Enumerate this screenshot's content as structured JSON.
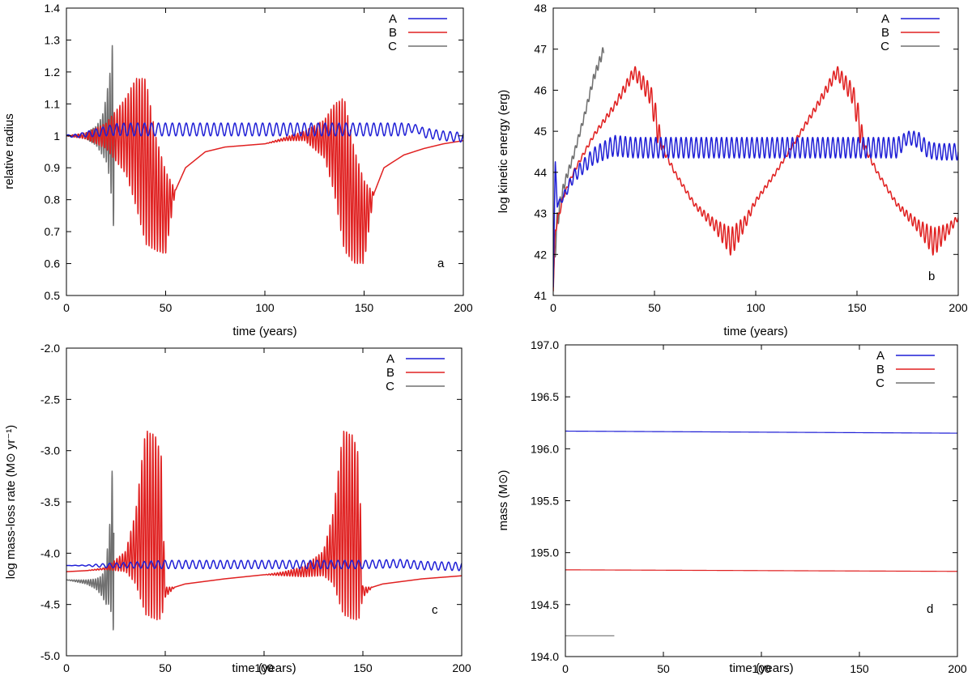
{
  "chart_data": [
    {
      "id": "a",
      "type": "line",
      "panel_label": "a",
      "xlabel": "time (years)",
      "ylabel": "relative radius",
      "xlim": [
        0,
        200
      ],
      "ylim": [
        0.5,
        1.4
      ],
      "xticks": [
        0,
        50,
        100,
        150,
        200
      ],
      "yticks": [
        0.5,
        0.6,
        0.7,
        0.8,
        0.9,
        1.0,
        1.1,
        1.2,
        1.3,
        1.4
      ],
      "ytick_labels": [
        "0.5",
        "0.6",
        "0.7",
        "0.8",
        "0.9",
        "1",
        "1.1",
        "1.2",
        "1.3",
        "1.4"
      ],
      "legend": [
        "A",
        "B",
        "C"
      ],
      "series": [
        {
          "name": "A",
          "color": "#1f1fd6",
          "x": [
            0,
            5,
            10,
            15,
            20,
            25,
            30,
            50,
            100,
            150,
            170,
            176,
            180,
            190,
            200
          ],
          "y": [
            1.0,
            1.0,
            1.005,
            1.01,
            1.015,
            1.02,
            1.02,
            1.02,
            1.02,
            1.02,
            1.02,
            1.025,
            1.01,
            1.0,
            0.995
          ],
          "osc_amp": [
            0.003,
            0.005,
            0.008,
            0.012,
            0.015,
            0.018,
            0.02,
            0.02,
            0.02,
            0.02,
            0.02,
            0.01,
            0.015,
            0.015,
            0.015
          ],
          "osc_period": 3.5
        },
        {
          "name": "B",
          "color": "#e02020",
          "x": [
            0,
            10,
            20,
            30,
            35,
            40,
            45,
            50,
            55,
            60,
            70,
            80,
            100,
            110,
            120,
            130,
            135,
            140,
            145,
            150,
            155,
            160,
            170,
            180,
            190,
            200
          ],
          "y": [
            1.0,
            1.0,
            1.0,
            1.0,
            0.98,
            0.92,
            0.82,
            0.76,
            0.83,
            0.9,
            0.95,
            0.965,
            0.975,
            0.99,
            1.0,
            0.99,
            0.96,
            0.88,
            0.78,
            0.73,
            0.82,
            0.9,
            0.94,
            0.96,
            0.975,
            0.985
          ],
          "osc_amp": [
            0.0,
            0.01,
            0.04,
            0.12,
            0.2,
            0.26,
            0.18,
            0.13,
            0.0,
            0.0,
            0.0,
            0.0,
            0.0,
            0.005,
            0.015,
            0.06,
            0.14,
            0.24,
            0.18,
            0.13,
            0.0,
            0.0,
            0.0,
            0.0,
            0.0,
            0.0
          ],
          "osc_period": 1.4
        },
        {
          "name": "C",
          "color": "#707070",
          "x": [
            0,
            5,
            10,
            15,
            18,
            20,
            22,
            24
          ],
          "y": [
            1.0,
            1.0,
            1.0,
            1.0,
            1.0,
            1.02,
            1.03,
            1.02
          ],
          "osc_amp": [
            0.0,
            0.003,
            0.01,
            0.03,
            0.06,
            0.1,
            0.17,
            0.33
          ],
          "osc_period": 1.2
        }
      ]
    },
    {
      "id": "b",
      "type": "line",
      "panel_label": "b",
      "xlabel": "time (years)",
      "ylabel": "log kinetic energy (erg)",
      "xlim": [
        0,
        200
      ],
      "ylim": [
        41,
        48
      ],
      "xticks": [
        0,
        50,
        100,
        150,
        200
      ],
      "yticks": [
        41,
        42,
        43,
        44,
        45,
        46,
        47,
        48
      ],
      "ytick_labels": [
        "41",
        "42",
        "43",
        "44",
        "45",
        "46",
        "47",
        "48"
      ],
      "legend": [
        "A",
        "B",
        "C"
      ],
      "series": [
        {
          "name": "A",
          "color": "#1f1fd6",
          "x": [
            0,
            1,
            2,
            5,
            10,
            20,
            30,
            40,
            50,
            100,
            150,
            170,
            175,
            180,
            185,
            190,
            200
          ],
          "y": [
            41.2,
            44.3,
            43.2,
            43.4,
            43.9,
            44.4,
            44.65,
            44.6,
            44.6,
            44.6,
            44.6,
            44.6,
            44.85,
            44.8,
            44.55,
            44.5,
            44.5
          ],
          "osc_amp": [
            0.0,
            0.0,
            0.05,
            0.1,
            0.15,
            0.2,
            0.25,
            0.25,
            0.25,
            0.25,
            0.25,
            0.25,
            0.15,
            0.2,
            0.2,
            0.2,
            0.2
          ],
          "osc_period": 2.5
        },
        {
          "name": "B",
          "color": "#e02020",
          "x": [
            0,
            1,
            2,
            5,
            10,
            20,
            30,
            40,
            48,
            52,
            53,
            60,
            70,
            80,
            88,
            95,
            100,
            110,
            120,
            130,
            140,
            148,
            152,
            153,
            160,
            170,
            180,
            188,
            195,
            200
          ],
          "y": [
            41.1,
            42.6,
            42.8,
            43.4,
            44.0,
            44.9,
            45.6,
            46.45,
            45.9,
            45.0,
            44.7,
            44.0,
            43.2,
            42.7,
            42.3,
            42.8,
            43.3,
            44.0,
            44.8,
            45.6,
            46.45,
            45.9,
            45.0,
            44.7,
            44.0,
            43.2,
            42.7,
            42.3,
            42.6,
            42.9
          ],
          "osc_amp": [
            0.0,
            0.1,
            0.1,
            0.05,
            0.05,
            0.05,
            0.08,
            0.15,
            0.25,
            0.4,
            0.1,
            0.05,
            0.06,
            0.15,
            0.35,
            0.15,
            0.06,
            0.05,
            0.05,
            0.08,
            0.15,
            0.25,
            0.4,
            0.1,
            0.05,
            0.06,
            0.15,
            0.35,
            0.15,
            0.06
          ],
          "osc_period": 2.0
        },
        {
          "name": "C",
          "color": "#707070",
          "x": [
            0,
            1,
            2,
            4,
            6,
            10,
            15,
            20,
            25
          ],
          "y": [
            41.3,
            42.2,
            42.8,
            43.4,
            43.8,
            44.4,
            45.3,
            46.3,
            47.0
          ],
          "osc_amp": [
            0.0,
            0.3,
            0.25,
            0.15,
            0.1,
            0.08,
            0.08,
            0.1,
            0.12
          ],
          "osc_period": 1.5
        }
      ]
    },
    {
      "id": "c",
      "type": "line",
      "panel_label": "c",
      "xlabel": "time (years)",
      "ylabel": "log mass-loss rate (M⊙ yr⁻¹)",
      "xlim": [
        0,
        200
      ],
      "ylim": [
        -5.0,
        -2.0
      ],
      "xticks": [
        0,
        50,
        100,
        150,
        200
      ],
      "yticks": [
        -5.0,
        -4.5,
        -4.0,
        -3.5,
        -3.0,
        -2.5,
        -2.0
      ],
      "ytick_labels": [
        "-5.0",
        "-4.5",
        "-4.0",
        "-3.5",
        "-3.0",
        "-2.5",
        "-2.0"
      ],
      "legend": [
        "A",
        "B",
        "C"
      ],
      "series": [
        {
          "name": "A",
          "color": "#1f1fd6",
          "x": [
            0,
            10,
            20,
            50,
            100,
            150,
            170,
            180,
            200
          ],
          "y": [
            -4.12,
            -4.12,
            -4.12,
            -4.11,
            -4.11,
            -4.11,
            -4.1,
            -4.12,
            -4.13
          ],
          "osc_amp": [
            0.0,
            0.005,
            0.02,
            0.04,
            0.04,
            0.04,
            0.04,
            0.04,
            0.04
          ],
          "osc_period": 3.5
        },
        {
          "name": "B",
          "color": "#e02020",
          "x": [
            0,
            10,
            20,
            30,
            35,
            40,
            45,
            48,
            50,
            55,
            60,
            80,
            100,
            110,
            120,
            130,
            135,
            140,
            145,
            148,
            150,
            155,
            160,
            180,
            200
          ],
          "y": [
            -4.18,
            -4.17,
            -4.15,
            -4.08,
            -3.95,
            -3.7,
            -3.75,
            -3.85,
            -4.38,
            -4.33,
            -4.3,
            -4.25,
            -4.21,
            -4.2,
            -4.18,
            -4.1,
            -3.95,
            -3.7,
            -3.75,
            -3.85,
            -4.38,
            -4.33,
            -4.3,
            -4.25,
            -4.22
          ],
          "osc_amp": [
            0.0,
            0.0,
            0.01,
            0.1,
            0.35,
            0.9,
            0.9,
            0.8,
            0.05,
            0.0,
            0.0,
            0.0,
            0.0,
            0.02,
            0.05,
            0.12,
            0.35,
            0.9,
            0.9,
            0.8,
            0.05,
            0.0,
            0.0,
            0.0,
            0.0
          ],
          "osc_period": 1.4
        },
        {
          "name": "C",
          "color": "#707070",
          "x": [
            0,
            5,
            10,
            15,
            18,
            20,
            22,
            24
          ],
          "y": [
            -4.26,
            -4.27,
            -4.28,
            -4.3,
            -4.32,
            -4.3,
            -4.1,
            -3.8
          ],
          "osc_amp": [
            0.0,
            0.01,
            0.02,
            0.05,
            0.1,
            0.2,
            0.4,
            1.0
          ],
          "osc_period": 1.2
        }
      ]
    },
    {
      "id": "d",
      "type": "line",
      "panel_label": "d",
      "xlabel": "time (years)",
      "ylabel": "mass (M⊙)",
      "xlim": [
        0,
        200
      ],
      "ylim": [
        194.0,
        197.0
      ],
      "xticks": [
        0,
        50,
        100,
        150,
        200
      ],
      "yticks": [
        194.0,
        194.5,
        195.0,
        195.5,
        196.0,
        196.5,
        197.0
      ],
      "ytick_labels": [
        "194.0",
        "194.5",
        "195.0",
        "195.5",
        "196.0",
        "196.5",
        "197.0"
      ],
      "legend": [
        "A",
        "B",
        "C"
      ],
      "series": [
        {
          "name": "A",
          "color": "#1f1fd6",
          "x": [
            0,
            200
          ],
          "y": [
            196.17,
            196.15
          ],
          "osc_amp": [
            0,
            0
          ],
          "osc_period": 1
        },
        {
          "name": "B",
          "color": "#e02020",
          "x": [
            0,
            200
          ],
          "y": [
            194.835,
            194.82
          ],
          "osc_amp": [
            0,
            0
          ],
          "osc_period": 1
        },
        {
          "name": "C",
          "color": "#707070",
          "x": [
            0,
            25
          ],
          "y": [
            194.2,
            194.2
          ],
          "osc_amp": [
            0,
            0
          ],
          "osc_period": 1
        }
      ]
    }
  ]
}
